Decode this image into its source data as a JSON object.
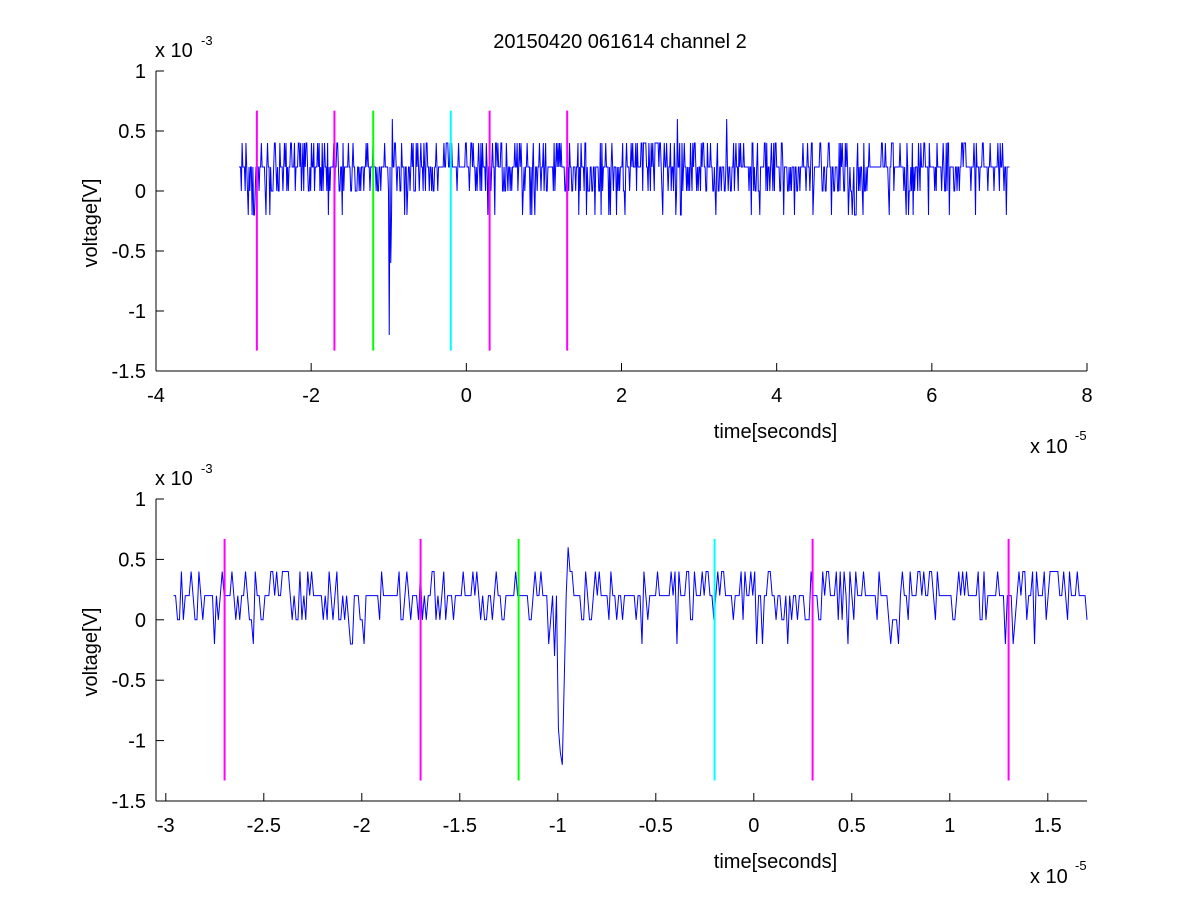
{
  "figure_title": "20150420 061614 channel 2",
  "colors": {
    "signal": "#0000ff",
    "marker_magenta": "#ff00ff",
    "marker_green": "#00ff00",
    "marker_cyan": "#00ffff",
    "axes": "#000000",
    "background": "#ffffff"
  },
  "chart_data": [
    {
      "type": "line",
      "title": "20150420 061614 channel 2",
      "xlabel": "time[seconds]",
      "ylabel": "voltage[V]",
      "x_exponent_label": "x 10",
      "x_exponent": "-5",
      "y_exponent_label": "x 10",
      "y_exponent": "-3",
      "x_scale": 1e-05,
      "y_scale": 0.001,
      "xlim": [
        -4,
        8
      ],
      "ylim": [
        -1.5,
        1
      ],
      "xticks": [
        -4,
        -2,
        0,
        2,
        4,
        6,
        8
      ],
      "xtick_labels": [
        "-4",
        "-2",
        "0",
        "2",
        "4",
        "6",
        "8"
      ],
      "yticks": [
        -1.5,
        -1,
        -0.5,
        0,
        0.5,
        1
      ],
      "ytick_labels": [
        "-1.5",
        "-1",
        "-0.5",
        "0",
        "0.5",
        "1"
      ],
      "grid": false,
      "series": [
        {
          "color": "#0000ff",
          "x_range": [
            -2.93,
            7.0
          ],
          "baseline": 0.2,
          "noise_levels": [
            0,
            0.2,
            0.4,
            -0.2
          ],
          "spikes": [
            {
              "x": -0.99,
              "y": -1.2
            },
            {
              "x": -0.97,
              "y": -0.6
            },
            {
              "x": -0.95,
              "y": 0.6
            },
            {
              "x": 2.72,
              "y": 0.6
            },
            {
              "x": 3.36,
              "y": 0.6
            }
          ]
        }
      ],
      "vertical_markers": [
        {
          "x": -2.7,
          "y_from": -1.33,
          "y_to": 0.67,
          "color": "#ff00ff"
        },
        {
          "x": -1.7,
          "y_from": -1.33,
          "y_to": 0.67,
          "color": "#ff00ff"
        },
        {
          "x": -1.2,
          "y_from": -1.33,
          "y_to": 0.67,
          "color": "#00ff00"
        },
        {
          "x": -0.2,
          "y_from": -1.33,
          "y_to": 0.67,
          "color": "#00ffff"
        },
        {
          "x": 0.3,
          "y_from": -1.33,
          "y_to": 0.67,
          "color": "#ff00ff"
        },
        {
          "x": 1.3,
          "y_from": -1.33,
          "y_to": 0.67,
          "color": "#ff00ff"
        }
      ]
    },
    {
      "type": "line",
      "title": "",
      "xlabel": "time[seconds]",
      "ylabel": "voltage[V]",
      "x_exponent_label": "x 10",
      "x_exponent": "-5",
      "y_exponent_label": "x 10",
      "y_exponent": "-3",
      "x_scale": 1e-05,
      "y_scale": 0.001,
      "xlim": [
        -3.05,
        1.7
      ],
      "ylim": [
        -1.5,
        1
      ],
      "xticks": [
        -3,
        -2.5,
        -2,
        -1.5,
        -1,
        -0.5,
        0,
        0.5,
        1,
        1.5
      ],
      "xtick_labels": [
        "-3",
        "-2.5",
        "-2",
        "-1.5",
        "-1",
        "-0.5",
        "0",
        "0.5",
        "1",
        "1.5"
      ],
      "yticks": [
        -1.5,
        -1,
        -0.5,
        0,
        0.5,
        1
      ],
      "ytick_labels": [
        "-1.5",
        "-1",
        "-0.5",
        "0",
        "0.5",
        "1"
      ],
      "grid": false,
      "series": [
        {
          "color": "#0000ff",
          "x_range": [
            -2.96,
            1.7
          ],
          "baseline": 0.2,
          "noise_levels": [
            0,
            0.2,
            0.4,
            -0.2
          ],
          "spikes": [
            {
              "x": -1.02,
              "y": -0.3
            },
            {
              "x": -1.0,
              "y": -0.9
            },
            {
              "x": -0.99,
              "y": -1.1
            },
            {
              "x": -0.98,
              "y": -1.2
            },
            {
              "x": -0.97,
              "y": -0.5
            },
            {
              "x": -0.95,
              "y": 0.6
            },
            {
              "x": -0.94,
              "y": 0.4
            }
          ]
        }
      ],
      "vertical_markers": [
        {
          "x": -2.7,
          "y_from": -1.33,
          "y_to": 0.67,
          "color": "#ff00ff"
        },
        {
          "x": -1.7,
          "y_from": -1.33,
          "y_to": 0.67,
          "color": "#ff00ff"
        },
        {
          "x": -1.2,
          "y_from": -1.33,
          "y_to": 0.67,
          "color": "#00ff00"
        },
        {
          "x": -0.2,
          "y_from": -1.33,
          "y_to": 0.67,
          "color": "#00ffff"
        },
        {
          "x": 0.3,
          "y_from": -1.33,
          "y_to": 0.67,
          "color": "#ff00ff"
        },
        {
          "x": 1.3,
          "y_from": -1.33,
          "y_to": 0.67,
          "color": "#ff00ff"
        }
      ]
    }
  ]
}
